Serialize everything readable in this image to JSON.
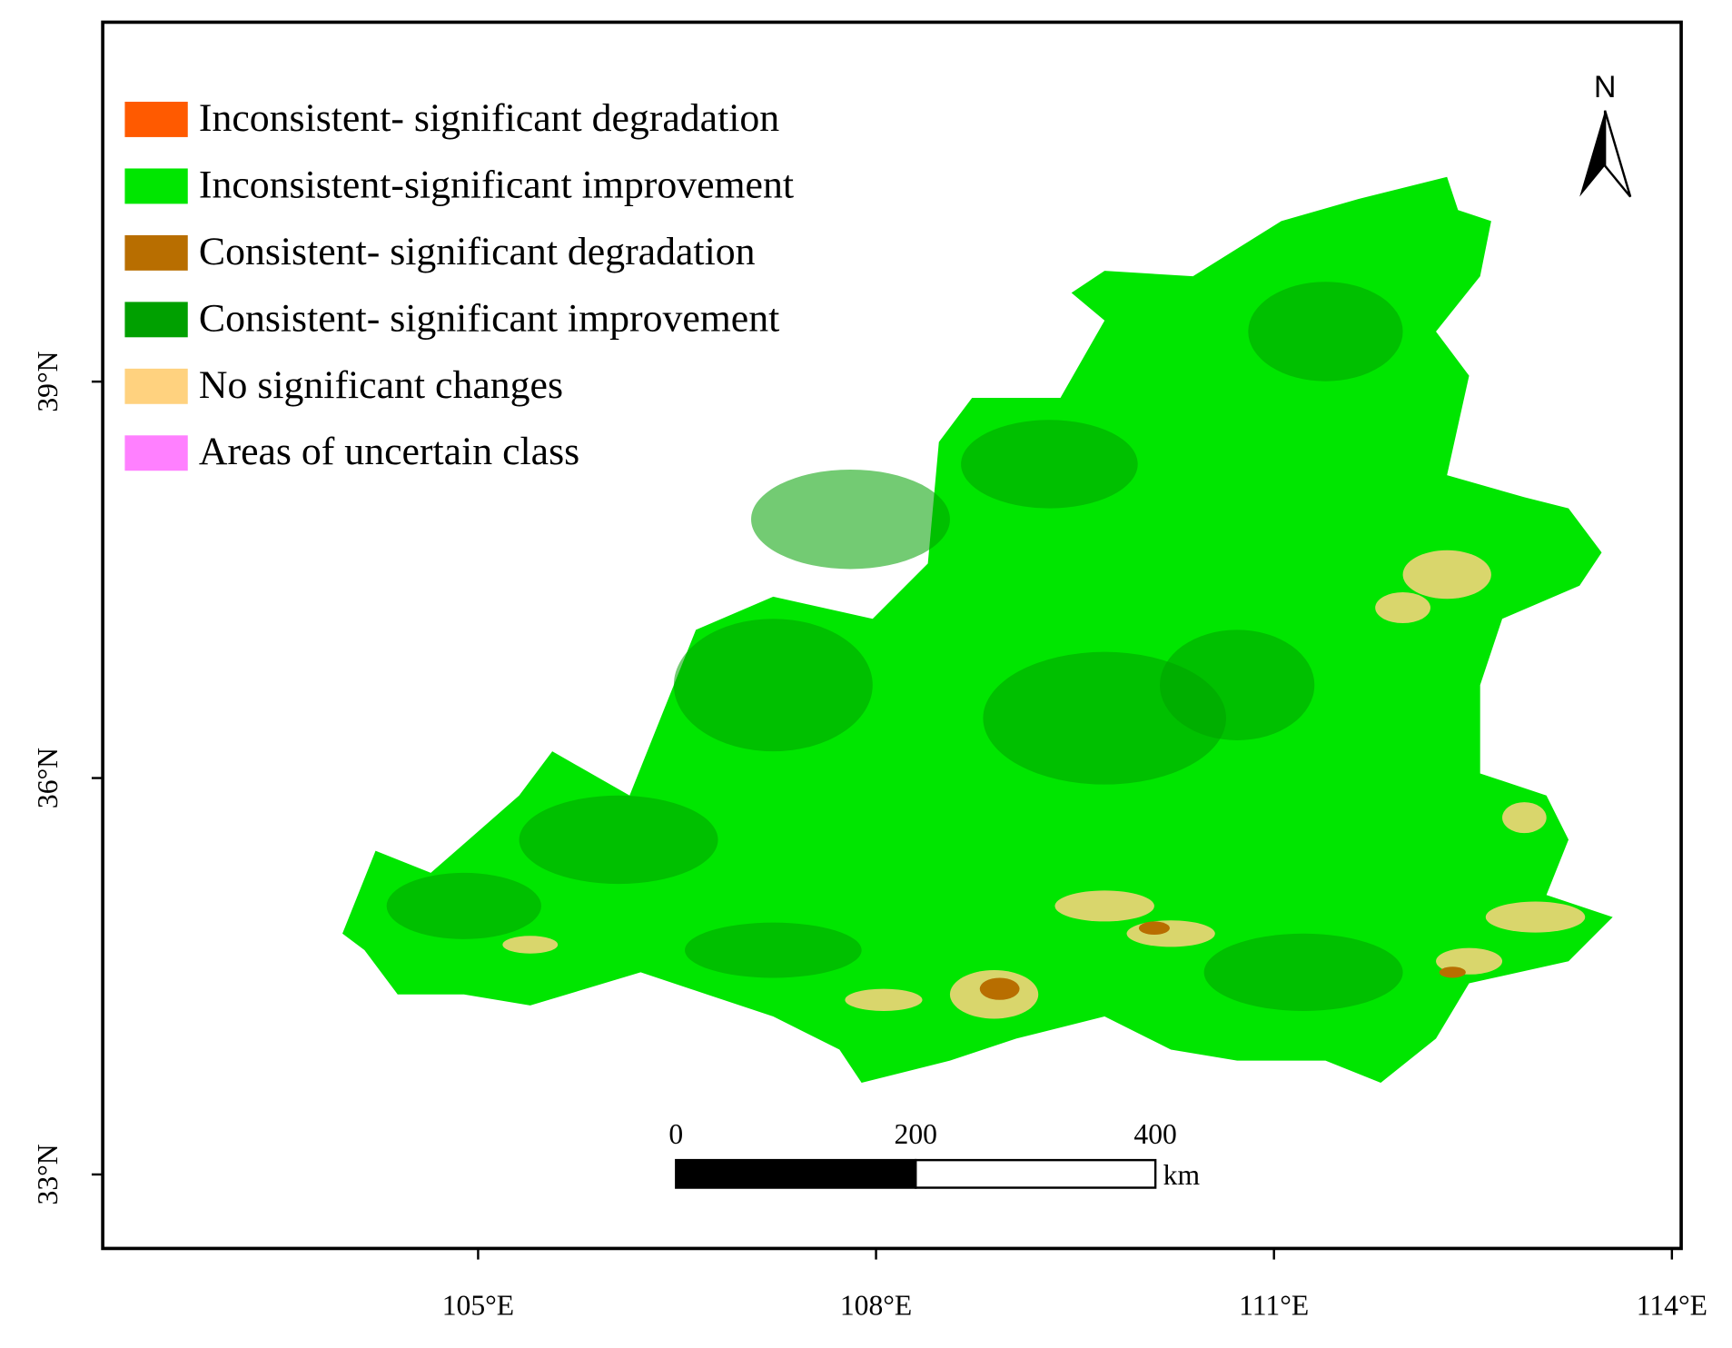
{
  "map": {
    "legend": [
      {
        "label": "Inconsistent- significant degradation",
        "color": "#ff5a00"
      },
      {
        "label": "Inconsistent-significant improvement",
        "color": "#00e600"
      },
      {
        "label": "Consistent- significant degradation",
        "color": "#b86e00"
      },
      {
        "label": "Consistent- significant improvement",
        "color": "#00a000"
      },
      {
        "label": "No significant changes",
        "color": "#ffd27f"
      },
      {
        "label": "Areas of uncertain class",
        "color": "#ff80ff"
      }
    ],
    "north_label": "N",
    "xlim": [
      102.17,
      114.07
    ],
    "ylim": [
      32.44,
      41.72
    ],
    "xticks": [
      {
        "value": 105,
        "label": "105°E"
      },
      {
        "value": 108,
        "label": "108°E"
      },
      {
        "value": 111,
        "label": "111°E"
      },
      {
        "value": 114,
        "label": "114°E"
      }
    ],
    "yticks": [
      {
        "value": 33,
        "label": "33°N"
      },
      {
        "value": 36,
        "label": "36°N"
      },
      {
        "value": 39,
        "label": "39°N"
      }
    ],
    "scale_bar": {
      "ticks": [
        0,
        200,
        400
      ],
      "unit": "km"
    }
  }
}
